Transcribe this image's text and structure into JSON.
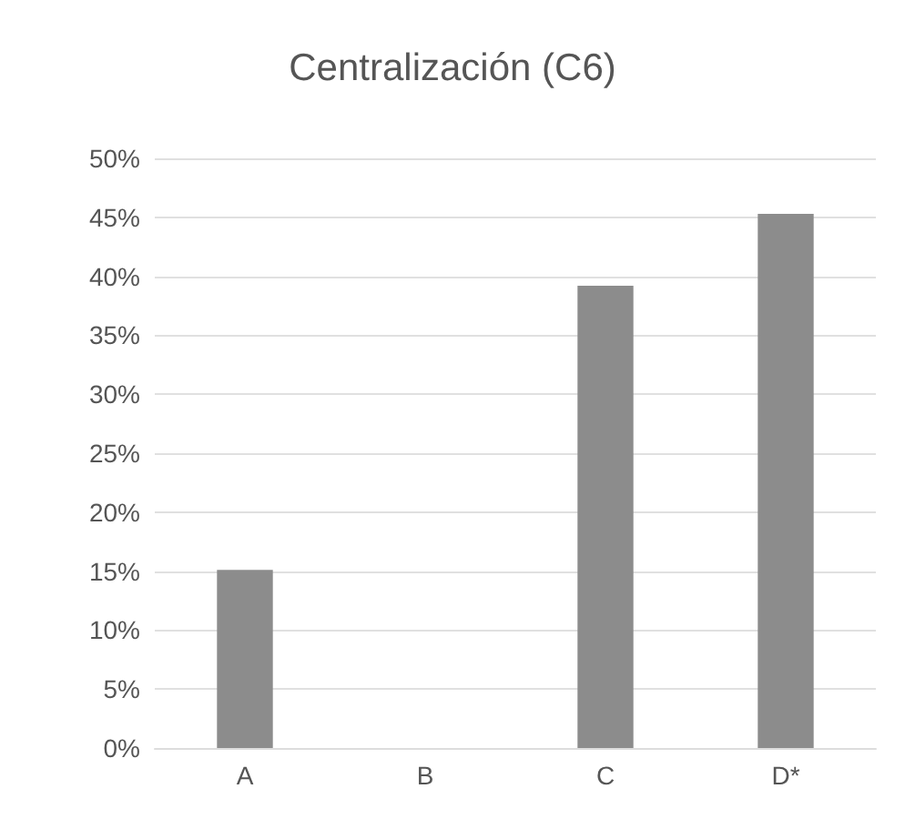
{
  "chart_data": {
    "type": "bar",
    "title": "Centralización (C6)",
    "categories": [
      "A",
      "B",
      "C",
      "D*"
    ],
    "values": [
      15.1,
      0,
      39.2,
      45.3
    ],
    "color": "#8c8c8c",
    "ylim": [
      0,
      50
    ],
    "yticks": [
      {
        "value": 0,
        "label": "0%"
      },
      {
        "value": 5,
        "label": "5%"
      },
      {
        "value": 10,
        "label": "10%"
      },
      {
        "value": 15,
        "label": "15%"
      },
      {
        "value": 20,
        "label": "20%"
      },
      {
        "value": 25,
        "label": "25%"
      },
      {
        "value": 30,
        "label": "30%"
      },
      {
        "value": 35,
        "label": "35%"
      },
      {
        "value": 40,
        "label": "40%"
      },
      {
        "value": 45,
        "label": "45%"
      },
      {
        "value": 50,
        "label": "50%"
      }
    ],
    "grid": true
  }
}
